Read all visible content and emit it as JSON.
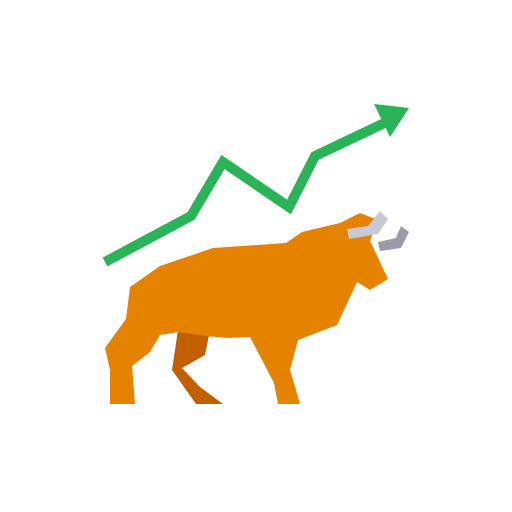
{
  "icon": {
    "name": "bull-market-icon",
    "parts": [
      "uptrend-arrow-icon",
      "bull-icon"
    ]
  },
  "colors": {
    "background": "#ffffff",
    "arrow": "#2bb357",
    "bull_body": "#e58200",
    "bull_shadow_leg": "#c25f00",
    "horn_light": "#c8c8d6",
    "horn_dark": "#9a9aa8"
  }
}
